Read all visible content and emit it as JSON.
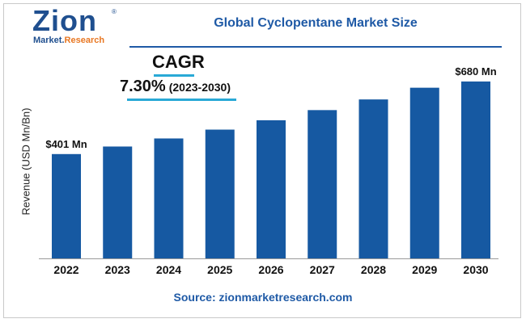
{
  "logo": {
    "main": "Zion",
    "sub_left": "Market.",
    "sub_right": "Research",
    "reg": "®"
  },
  "title": "Global Cyclopentane Market Size",
  "cagr": {
    "label": "CAGR",
    "value": "7.30%",
    "period": "(2023-2030)"
  },
  "source": "Source: zionmarketresearch.com",
  "chart_data": {
    "type": "bar",
    "title": "Global Cyclopentane Market Size",
    "ylabel": "Revenue (USD Mn/Bn)",
    "xlabel": "",
    "categories": [
      "2022",
      "2023",
      "2024",
      "2025",
      "2026",
      "2027",
      "2028",
      "2029",
      "2030"
    ],
    "values": [
      401,
      430,
      461,
      495,
      531,
      570,
      611,
      656,
      680
    ],
    "data_labels": [
      {
        "index": 0,
        "text": "$401 Mn"
      },
      {
        "index": 8,
        "text": "$680 Mn"
      }
    ],
    "bar_color": "#1659a2",
    "grid": false,
    "legend": "none"
  }
}
